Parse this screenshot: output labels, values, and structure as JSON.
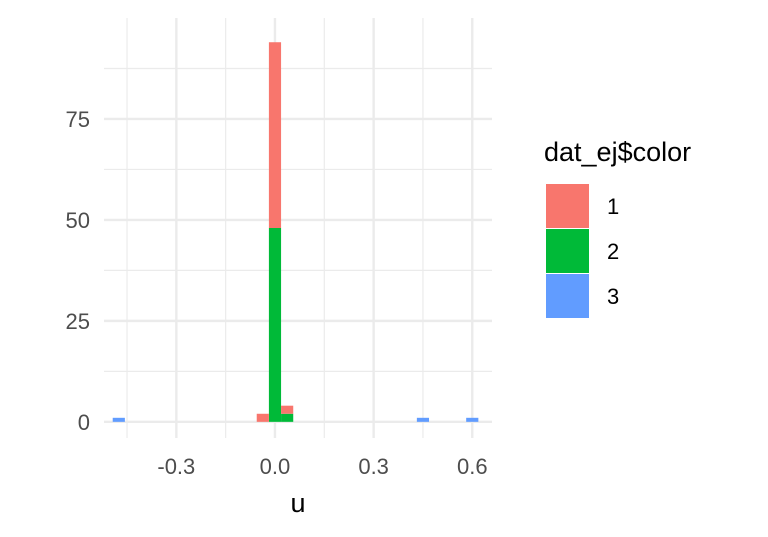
{
  "chart_data": {
    "type": "bar",
    "subtype": "stacked-histogram",
    "title": "",
    "xlabel": "u",
    "ylabel": "",
    "xlim": [
      -0.52,
      0.66
    ],
    "ylim": [
      -4,
      100
    ],
    "x_ticks": [
      -0.3,
      0.0,
      0.3,
      0.6
    ],
    "x_tick_labels": [
      "-0.3",
      "0.0",
      "0.3",
      "0.6"
    ],
    "y_ticks": [
      0,
      25,
      50,
      75
    ],
    "y_tick_labels": [
      "0",
      "25",
      "50",
      "75"
    ],
    "grid": true,
    "bin_width": 0.037,
    "legend": {
      "title": "dat_ej$color",
      "placement": "right",
      "entries": [
        "1",
        "2",
        "3"
      ]
    },
    "series": [
      {
        "name": "1",
        "color": "#F8766D",
        "points": [
          {
            "x": -0.037,
            "y": 2
          },
          {
            "x": 0.0,
            "y": 46
          },
          {
            "x": 0.037,
            "y": 2
          }
        ]
      },
      {
        "name": "2",
        "color": "#00BA38",
        "points": [
          {
            "x": 0.0,
            "y": 48
          },
          {
            "x": 0.037,
            "y": 2
          }
        ]
      },
      {
        "name": "3",
        "color": "#619CFF",
        "points": [
          {
            "x": -0.475,
            "y": 1
          },
          {
            "x": 0.45,
            "y": 1
          },
          {
            "x": 0.6,
            "y": 1
          }
        ]
      }
    ],
    "stack_order": [
      "2",
      "1",
      "3"
    ]
  }
}
